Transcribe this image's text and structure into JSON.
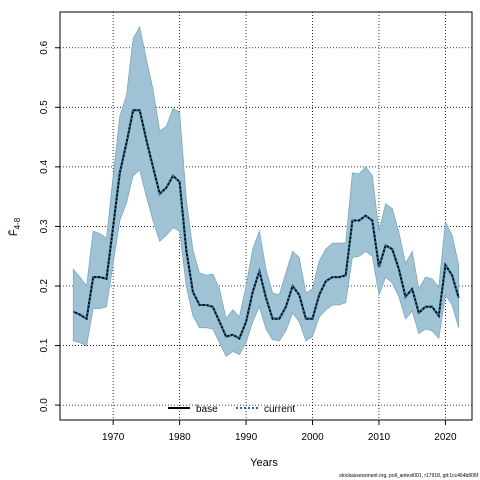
{
  "chart_data": {
    "type": "line",
    "title": "",
    "xlabel": "Years",
    "ylabel": "F̄",
    "ylabel_subscript": "4-8",
    "xlim": [
      1962,
      2024
    ],
    "ylim": [
      -0.025,
      0.66
    ],
    "xticks": [
      1970,
      1980,
      1990,
      2000,
      2010,
      2020
    ],
    "yticks": [
      0.0,
      0.1,
      0.2,
      0.3,
      0.4,
      0.5,
      0.6
    ],
    "ytick_labels": [
      "0.0",
      "0.1",
      "0.2",
      "0.3",
      "0.4",
      "0.5",
      "0.6"
    ],
    "grid": true,
    "legend_position": "bottom-center",
    "x": [
      1964,
      1965,
      1966,
      1967,
      1968,
      1969,
      1970,
      1971,
      1972,
      1973,
      1974,
      1975,
      1976,
      1977,
      1978,
      1979,
      1980,
      1981,
      1982,
      1983,
      1984,
      1985,
      1986,
      1987,
      1988,
      1989,
      1990,
      1991,
      1992,
      1993,
      1994,
      1995,
      1996,
      1997,
      1998,
      1999,
      2000,
      2001,
      2002,
      2003,
      2004,
      2005,
      2006,
      2007,
      2008,
      2009,
      2010,
      2011,
      2012,
      2013,
      2014,
      2015,
      2016,
      2017,
      2018,
      2019,
      2020,
      2021,
      2022
    ],
    "series": [
      {
        "name": "base",
        "style": "solid",
        "color": "#000000",
        "values": [
          0.157,
          0.152,
          0.145,
          0.215,
          0.215,
          0.212,
          0.3,
          0.39,
          0.44,
          0.495,
          0.495,
          0.445,
          0.4,
          0.355,
          0.365,
          0.385,
          0.375,
          0.26,
          0.19,
          0.168,
          0.168,
          0.165,
          0.14,
          0.115,
          0.118,
          0.112,
          0.14,
          0.19,
          0.225,
          0.18,
          0.145,
          0.145,
          0.165,
          0.2,
          0.185,
          0.145,
          0.145,
          0.185,
          0.208,
          0.215,
          0.215,
          0.218,
          0.31,
          0.31,
          0.318,
          0.31,
          0.232,
          0.268,
          0.262,
          0.228,
          0.182,
          0.195,
          0.155,
          0.165,
          0.165,
          0.15,
          0.235,
          0.218,
          0.18
        ]
      },
      {
        "name": "current",
        "style": "dotted",
        "color": "#1f6e99",
        "values": [
          0.157,
          0.152,
          0.145,
          0.215,
          0.215,
          0.212,
          0.3,
          0.39,
          0.44,
          0.495,
          0.495,
          0.445,
          0.4,
          0.355,
          0.365,
          0.385,
          0.375,
          0.26,
          0.19,
          0.168,
          0.168,
          0.165,
          0.14,
          0.115,
          0.118,
          0.112,
          0.14,
          0.19,
          0.225,
          0.18,
          0.145,
          0.145,
          0.165,
          0.2,
          0.185,
          0.145,
          0.145,
          0.185,
          0.208,
          0.215,
          0.215,
          0.218,
          0.31,
          0.31,
          0.318,
          0.31,
          0.232,
          0.268,
          0.262,
          0.228,
          0.182,
          0.195,
          0.155,
          0.165,
          0.165,
          0.15,
          0.235,
          0.218,
          0.18
        ]
      }
    ],
    "band": {
      "color": "#9fc2d4",
      "edge_color": "#7ba8bf",
      "upper": [
        0.228,
        0.215,
        0.2,
        0.292,
        0.288,
        0.28,
        0.385,
        0.485,
        0.52,
        0.615,
        0.635,
        0.58,
        0.53,
        0.46,
        0.468,
        0.498,
        0.492,
        0.345,
        0.26,
        0.222,
        0.218,
        0.22,
        0.195,
        0.145,
        0.16,
        0.148,
        0.2,
        0.262,
        0.292,
        0.228,
        0.188,
        0.185,
        0.222,
        0.258,
        0.248,
        0.188,
        0.195,
        0.242,
        0.262,
        0.272,
        0.272,
        0.272,
        0.39,
        0.388,
        0.4,
        0.385,
        0.292,
        0.338,
        0.33,
        0.29,
        0.238,
        0.258,
        0.195,
        0.215,
        0.212,
        0.198,
        0.308,
        0.285,
        0.235
      ],
      "lower": [
        0.108,
        0.105,
        0.1,
        0.162,
        0.162,
        0.165,
        0.238,
        0.31,
        0.34,
        0.385,
        0.395,
        0.35,
        0.31,
        0.275,
        0.285,
        0.298,
        0.292,
        0.2,
        0.15,
        0.13,
        0.13,
        0.128,
        0.105,
        0.082,
        0.09,
        0.085,
        0.105,
        0.14,
        0.165,
        0.128,
        0.11,
        0.108,
        0.125,
        0.155,
        0.14,
        0.108,
        0.115,
        0.148,
        0.16,
        0.168,
        0.168,
        0.172,
        0.248,
        0.25,
        0.258,
        0.25,
        0.185,
        0.215,
        0.205,
        0.182,
        0.145,
        0.158,
        0.12,
        0.128,
        0.125,
        0.112,
        0.185,
        0.168,
        0.13
      ]
    },
    "legend": [
      {
        "label": "base",
        "style": "solid",
        "color": "#000000"
      },
      {
        "label": "current",
        "style": "dotted",
        "color": "#1f6e99"
      }
    ]
  },
  "footer": {
    "caption": "stockassessment.org, poll_antest001, r17918, git:1cc464b806f"
  }
}
